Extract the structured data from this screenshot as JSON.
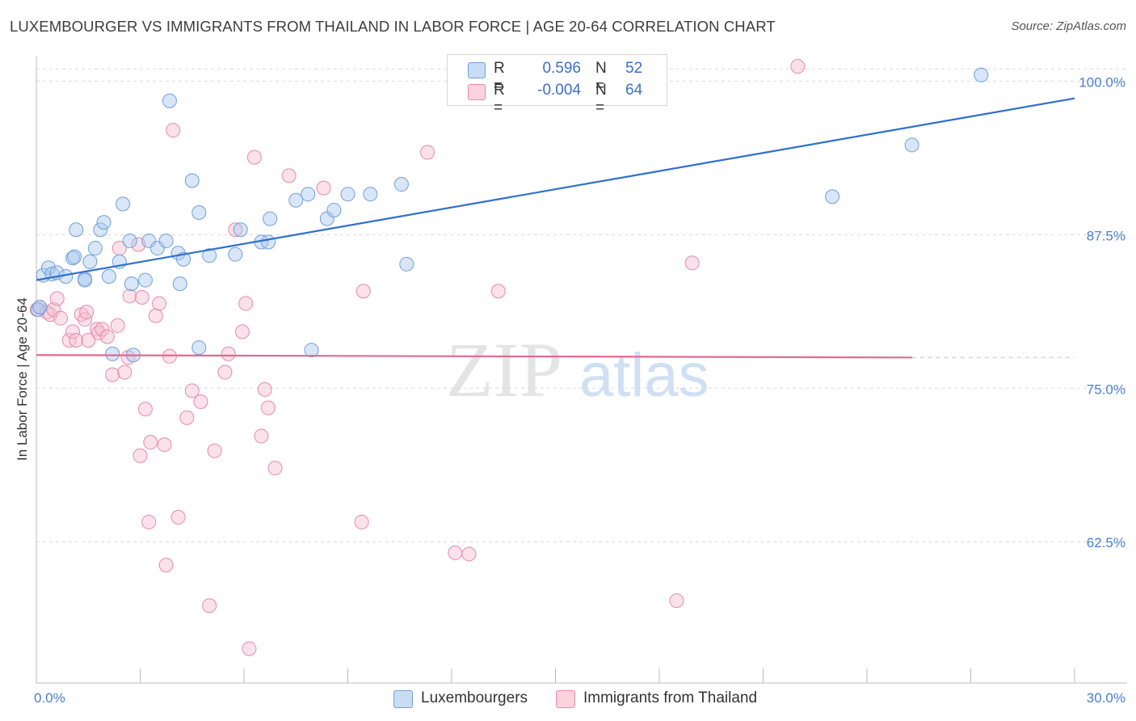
{
  "title": "LUXEMBOURGER VS IMMIGRANTS FROM THAILAND IN LABOR FORCE | AGE 20-64 CORRELATION CHART",
  "source": "Source: ZipAtlas.com",
  "watermark": {
    "zip": "ZIP",
    "atlas": "atlas"
  },
  "legend_top": {
    "rows": [
      {
        "r_label": "R =",
        "r_value": "0.596",
        "n_label": "N =",
        "n_value": "52"
      },
      {
        "r_label": "R =",
        "r_value": "-0.004",
        "n_label": "N =",
        "n_value": "64"
      }
    ]
  },
  "legend_bottom": {
    "items": [
      "Luxembourgers",
      "Immigrants from Thailand"
    ]
  },
  "colors": {
    "blue_fill": "#a9c7f0",
    "blue_stroke": "#6f9fdd",
    "blue_line": "#2f6fcf",
    "pink_fill": "#f7bfd0",
    "pink_stroke": "#e58aa8",
    "pink_line": "#e36990",
    "grid": "#d9d9d9",
    "tick_text": "#4a7fd0"
  },
  "chart_data": {
    "type": "scatter",
    "title": "LUXEMBOURGER VS IMMIGRANTS FROM THAILAND IN LABOR FORCE | AGE 20-64 CORRELATION CHART",
    "xlabel": "",
    "ylabel": "In Labor Force | Age 20-64",
    "xlim": [
      0,
      30
    ],
    "ylim": [
      51,
      102
    ],
    "x_tick_labels": [
      "0.0%",
      "30.0%"
    ],
    "y_ticks": [
      62.5,
      75.0,
      87.5,
      100.0
    ],
    "y_tick_labels": [
      "62.5%",
      "75.0%",
      "87.5%",
      "100.0%"
    ],
    "grid": true,
    "legend_position": "top-center",
    "series": [
      {
        "name": "Luxembourgers",
        "color": "#a9c7f0",
        "trend": {
          "x": [
            0,
            30
          ],
          "y": [
            83.8,
            98.6
          ],
          "style": "solid"
        },
        "points": [
          [
            0.05,
            81.4
          ],
          [
            0.2,
            84.2
          ],
          [
            0.35,
            84.8
          ],
          [
            0.45,
            84.3
          ],
          [
            0.6,
            84.4
          ],
          [
            0.85,
            84.1
          ],
          [
            1.05,
            85.6
          ],
          [
            1.1,
            85.7
          ],
          [
            1.15,
            87.9
          ],
          [
            1.4,
            83.9
          ],
          [
            1.4,
            83.8
          ],
          [
            1.55,
            85.3
          ],
          [
            1.7,
            86.4
          ],
          [
            1.85,
            87.9
          ],
          [
            1.95,
            88.5
          ],
          [
            2.1,
            84.1
          ],
          [
            2.4,
            85.3
          ],
          [
            2.5,
            90.0
          ],
          [
            2.7,
            87.0
          ],
          [
            2.75,
            83.5
          ],
          [
            3.15,
            83.8
          ],
          [
            3.25,
            87.0
          ],
          [
            3.5,
            86.4
          ],
          [
            3.75,
            87.0
          ],
          [
            3.85,
            98.4
          ],
          [
            4.1,
            86.0
          ],
          [
            4.15,
            83.5
          ],
          [
            4.25,
            85.5
          ],
          [
            4.5,
            91.9
          ],
          [
            4.7,
            89.3
          ],
          [
            5.0,
            85.8
          ],
          [
            5.75,
            85.9
          ],
          [
            5.9,
            87.9
          ],
          [
            6.5,
            86.9
          ],
          [
            6.7,
            86.9
          ],
          [
            6.75,
            88.8
          ],
          [
            7.5,
            90.3
          ],
          [
            7.85,
            90.8
          ],
          [
            8.4,
            88.8
          ],
          [
            8.6,
            89.5
          ],
          [
            9.0,
            90.8
          ],
          [
            9.65,
            90.8
          ],
          [
            10.55,
            91.6
          ],
          [
            10.7,
            85.1
          ],
          [
            2.2,
            77.8
          ],
          [
            2.8,
            77.7
          ],
          [
            4.7,
            78.3
          ],
          [
            7.95,
            78.1
          ],
          [
            23.0,
            90.6
          ],
          [
            25.3,
            94.8
          ],
          [
            27.3,
            100.5
          ],
          [
            0.1,
            81.6
          ]
        ]
      },
      {
        "name": "Immigrants from Thailand",
        "color": "#f7bfd0",
        "trend": {
          "x": [
            0,
            25.3
          ],
          "y": [
            77.7,
            77.5
          ],
          "style": "solid",
          "dashed_to_x": 30
        },
        "points": [
          [
            0.02,
            81.4
          ],
          [
            0.1,
            81.6
          ],
          [
            0.3,
            81.2
          ],
          [
            0.4,
            81.0
          ],
          [
            0.5,
            81.4
          ],
          [
            0.6,
            82.3
          ],
          [
            0.7,
            80.7
          ],
          [
            0.95,
            78.9
          ],
          [
            1.05,
            79.6
          ],
          [
            1.15,
            78.9
          ],
          [
            1.3,
            81.0
          ],
          [
            1.4,
            80.6
          ],
          [
            1.45,
            81.2
          ],
          [
            1.5,
            78.9
          ],
          [
            1.75,
            79.8
          ],
          [
            1.8,
            79.5
          ],
          [
            1.9,
            79.8
          ],
          [
            2.05,
            79.2
          ],
          [
            2.2,
            76.1
          ],
          [
            2.35,
            80.1
          ],
          [
            2.4,
            86.4
          ],
          [
            2.55,
            76.3
          ],
          [
            2.65,
            77.5
          ],
          [
            2.7,
            82.5
          ],
          [
            2.95,
            86.7
          ],
          [
            3.0,
            69.5
          ],
          [
            3.05,
            82.4
          ],
          [
            3.15,
            73.3
          ],
          [
            3.25,
            64.1
          ],
          [
            3.3,
            70.6
          ],
          [
            3.45,
            80.9
          ],
          [
            3.55,
            81.9
          ],
          [
            3.7,
            70.4
          ],
          [
            3.75,
            60.6
          ],
          [
            3.85,
            77.6
          ],
          [
            3.95,
            96.0
          ],
          [
            4.1,
            64.5
          ],
          [
            4.35,
            72.6
          ],
          [
            4.5,
            74.8
          ],
          [
            4.75,
            73.9
          ],
          [
            5.0,
            57.3
          ],
          [
            5.15,
            69.9
          ],
          [
            5.45,
            76.3
          ],
          [
            5.55,
            77.8
          ],
          [
            5.75,
            87.9
          ],
          [
            5.95,
            79.6
          ],
          [
            6.05,
            81.9
          ],
          [
            6.15,
            53.8
          ],
          [
            6.3,
            93.8
          ],
          [
            6.5,
            71.1
          ],
          [
            6.6,
            74.9
          ],
          [
            6.7,
            73.4
          ],
          [
            6.9,
            68.5
          ],
          [
            7.3,
            92.3
          ],
          [
            8.3,
            91.3
          ],
          [
            9.4,
            64.1
          ],
          [
            9.45,
            82.9
          ],
          [
            11.3,
            94.2
          ],
          [
            12.1,
            61.6
          ],
          [
            12.5,
            61.5
          ],
          [
            13.35,
            82.9
          ],
          [
            18.5,
            57.7
          ],
          [
            18.95,
            85.2
          ],
          [
            22.0,
            101.2
          ]
        ]
      }
    ]
  }
}
